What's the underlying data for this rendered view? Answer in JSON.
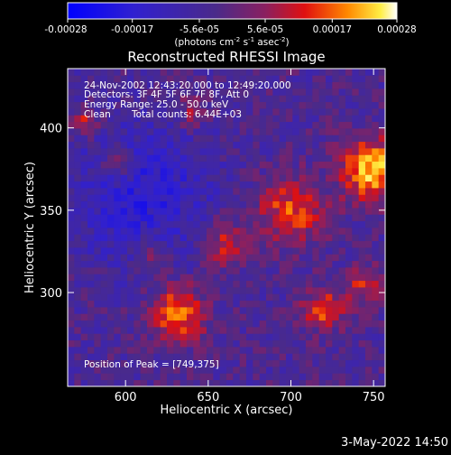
{
  "chart_data": {
    "type": "heatmap",
    "title": "Reconstructed RHESSI Image",
    "xlabel": "Heliocentric X (arcsec)",
    "ylabel": "Heliocentric Y (arcsec)",
    "xlim": [
      565,
      757
    ],
    "ylim": [
      243,
      436
    ],
    "x_ticks": [
      600,
      650,
      700,
      750
    ],
    "y_ticks": [
      300,
      350,
      400
    ],
    "colorbar": {
      "ticks": [
        "-0.00028",
        "-0.00017",
        "-5.6e-05",
        "5.6e-05",
        "0.00017",
        "0.00028"
      ],
      "tick_values": [
        -0.00028,
        -0.00017,
        -5.6e-05,
        5.6e-05,
        0.00017,
        0.00028
      ],
      "range": [
        -0.00028,
        0.00028
      ],
      "label_main": "(photons cm",
      "label_exp1": "-2",
      "label_mid1": " s",
      "label_exp2": "-1",
      "label_mid2": " asec",
      "label_exp3": "-2",
      "label_end": ")",
      "colormap": "rhessi-blue-purple-red-yellow-white"
    },
    "sources": [
      {
        "x": 749,
        "y": 375,
        "sigma": 13,
        "amp": 0.00028
      },
      {
        "x": 700,
        "y": 350,
        "sigma": 14,
        "amp": 0.00019
      },
      {
        "x": 660,
        "y": 330,
        "sigma": 10,
        "amp": 0.00015
      },
      {
        "x": 632,
        "y": 288,
        "sigma": 12,
        "amp": 0.00022
      },
      {
        "x": 720,
        "y": 290,
        "sigma": 9,
        "amp": 0.00018
      },
      {
        "x": 595,
        "y": 378,
        "sigma": 7,
        "amp": 0.00013
      },
      {
        "x": 575,
        "y": 403,
        "sigma": 6,
        "amp": 0.00015
      },
      {
        "x": 745,
        "y": 305,
        "sigma": 8,
        "amp": 0.00015
      },
      {
        "x": 640,
        "y": 410,
        "sigma": 7,
        "amp": 0.00011
      },
      {
        "x": 615,
        "y": 325,
        "sigma": 7,
        "amp": 0.00012
      }
    ],
    "background_level": -4e-05,
    "trough": {
      "x": 610,
      "y": 360,
      "sigma": 30,
      "amp": -0.00013
    },
    "peak_position": [
      749,
      375
    ]
  },
  "info": {
    "line1": "24-Nov-2002 12:43:20.000 to 12:49:20.000",
    "line2": "Detectors: 3F 4F 5F 6F 7F 8F, Att 0",
    "line3": "Energy Range: 25.0 - 50.0 keV",
    "line4a": "Clean",
    "line4b": "Total counts: 6.44E+03",
    "peak": "Position of Peak = [749,375]"
  },
  "footer": {
    "date": "3-May-2022 14:50"
  }
}
